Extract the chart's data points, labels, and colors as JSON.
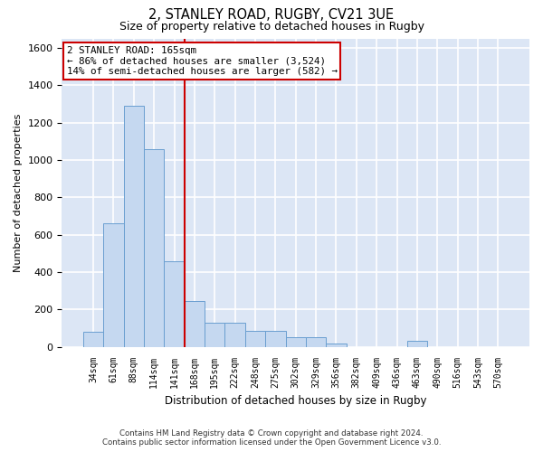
{
  "title1": "2, STANLEY ROAD, RUGBY, CV21 3UE",
  "title2": "Size of property relative to detached houses in Rugby",
  "xlabel": "Distribution of detached houses by size in Rugby",
  "ylabel": "Number of detached properties",
  "categories": [
    "34sqm",
    "61sqm",
    "88sqm",
    "114sqm",
    "141sqm",
    "168sqm",
    "195sqm",
    "222sqm",
    "248sqm",
    "275sqm",
    "302sqm",
    "329sqm",
    "356sqm",
    "382sqm",
    "409sqm",
    "436sqm",
    "463sqm",
    "490sqm",
    "516sqm",
    "543sqm",
    "570sqm"
  ],
  "values": [
    80,
    660,
    1290,
    1060,
    460,
    245,
    130,
    130,
    85,
    85,
    50,
    50,
    20,
    0,
    0,
    0,
    30,
    0,
    0,
    0,
    0
  ],
  "bar_color": "#c5d8f0",
  "bar_edge_color": "#6a9fd0",
  "background_color": "#dce6f5",
  "grid_color": "#ffffff",
  "ylim": [
    0,
    1650
  ],
  "yticks": [
    0,
    200,
    400,
    600,
    800,
    1000,
    1200,
    1400,
    1600
  ],
  "vline_color": "#cc0000",
  "annotation_text": "2 STANLEY ROAD: 165sqm\n← 86% of detached houses are smaller (3,524)\n14% of semi-detached houses are larger (582) →",
  "footer1": "Contains HM Land Registry data © Crown copyright and database right 2024.",
  "footer2": "Contains public sector information licensed under the Open Government Licence v3.0."
}
